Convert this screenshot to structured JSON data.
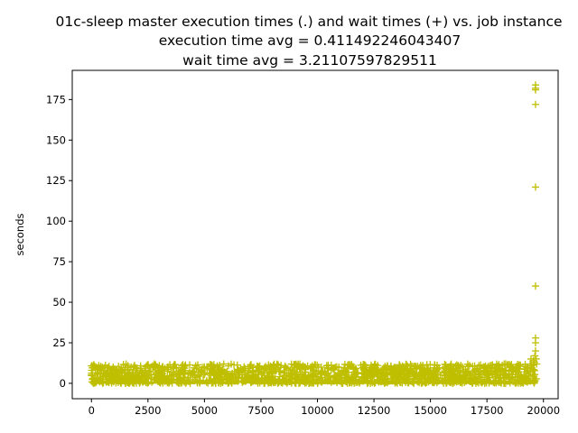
{
  "chart_data": {
    "type": "scatter",
    "title_lines": [
      "01c-sleep master execution times (.) and wait times (+) vs. job instance",
      "execution time avg = 0.411492246043407",
      "wait time avg = 3.21107597829511"
    ],
    "xlabel": "",
    "ylabel": "seconds",
    "xlim": [
      -850,
      20650
    ],
    "ylim": [
      -9.5,
      193
    ],
    "xticks": [
      0,
      2500,
      5000,
      7500,
      10000,
      12500,
      15000,
      17500,
      20000
    ],
    "xtick_labels": [
      "0",
      "2500",
      "5000",
      "7500",
      "10000",
      "12500",
      "15000",
      "17500",
      "20000"
    ],
    "yticks": [
      0,
      25,
      50,
      75,
      100,
      125,
      150,
      175
    ],
    "ytick_labels": [
      "0",
      "25",
      "50",
      "75",
      "100",
      "125",
      "150",
      "175"
    ],
    "grid": false,
    "series": [
      {
        "marker": "+",
        "color": "#bfbf00",
        "band": {
          "x_range": [
            0,
            19700
          ],
          "y_range": [
            0,
            12
          ]
        },
        "outliers": [
          {
            "x": 19650,
            "y": 184
          },
          {
            "x": 19650,
            "y": 182
          },
          {
            "x": 19650,
            "y": 181
          },
          {
            "x": 19650,
            "y": 172
          },
          {
            "x": 19650,
            "y": 121
          },
          {
            "x": 19650,
            "y": 60
          },
          {
            "x": 19650,
            "y": 28
          },
          {
            "x": 19650,
            "y": 25
          },
          {
            "x": 19650,
            "y": 20
          },
          {
            "x": 19620,
            "y": 17
          },
          {
            "x": 19680,
            "y": 15
          },
          {
            "x": 19600,
            "y": 13
          },
          {
            "x": 19550,
            "y": 14
          },
          {
            "x": 19450,
            "y": 15
          },
          {
            "x": 10450,
            "y": 9
          },
          {
            "x": 12900,
            "y": 8
          },
          {
            "x": 100,
            "y": 11
          }
        ]
      },
      {
        "marker": ".",
        "color": "#bfbf00",
        "band": {
          "x_range": [
            0,
            19700
          ],
          "y_range": [
            0,
            1
          ]
        },
        "outliers": []
      }
    ]
  }
}
